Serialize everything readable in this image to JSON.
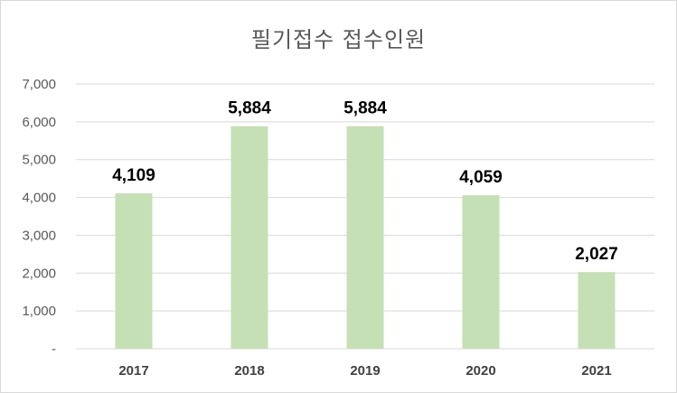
{
  "chart_data": {
    "type": "bar",
    "title": "필기접수 접수인원",
    "categories": [
      "2017",
      "2018",
      "2019",
      "2020",
      "2021"
    ],
    "values": [
      4109,
      5884,
      5884,
      4059,
      2027
    ],
    "data_labels": [
      "4,109",
      "5,884",
      "5,884",
      "4,059",
      "2,027"
    ],
    "ylim": [
      0,
      7000
    ],
    "yticks": [
      0,
      1000,
      2000,
      3000,
      4000,
      5000,
      6000,
      7000
    ],
    "ytick_labels": [
      "-",
      "1,000",
      "2,000",
      "3,000",
      "4,000",
      "5,000",
      "6,000",
      "7,000"
    ],
    "xlabel": "",
    "ylabel": "",
    "grid": true,
    "legend": "none",
    "bar_color": "#c5e0b4",
    "grid_color": "#d9d9d9"
  }
}
